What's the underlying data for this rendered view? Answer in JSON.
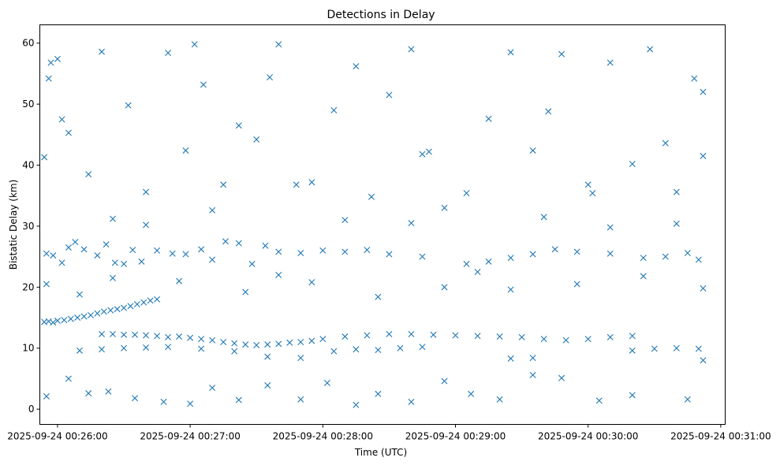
{
  "chart_data": {
    "type": "scatter",
    "title": "Detections in Delay",
    "xlabel": "Time (UTC)",
    "ylabel": "Bistatic Delay (km)",
    "marker": "x",
    "color": "#1f77b4",
    "grid": false,
    "legend": "none",
    "xlim": [
      "2025-09-24 00:25:52",
      "2025-09-24 00:31:02"
    ],
    "ylim": [
      -2.5,
      63
    ],
    "x_ticks": [
      "2025-09-24 00:26:00",
      "2025-09-24 00:27:00",
      "2025-09-24 00:28:00",
      "2025-09-24 00:29:00",
      "2025-09-24 00:30:00",
      "2025-09-24 00:31:00"
    ],
    "y_ticks": [
      0,
      10,
      20,
      30,
      40,
      50,
      60
    ],
    "series": [
      {
        "points": [
          [
            "2025-09-24 00:25:54",
            14.3
          ],
          [
            "2025-09-24 00:25:56",
            14.4
          ],
          [
            "2025-09-24 00:25:58",
            14.2
          ],
          [
            "2025-09-24 00:26:00",
            14.5
          ],
          [
            "2025-09-24 00:26:03",
            14.6
          ],
          [
            "2025-09-24 00:26:06",
            14.8
          ],
          [
            "2025-09-24 00:26:09",
            15.0
          ],
          [
            "2025-09-24 00:26:12",
            15.2
          ],
          [
            "2025-09-24 00:26:15",
            15.4
          ],
          [
            "2025-09-24 00:26:18",
            15.7
          ],
          [
            "2025-09-24 00:26:21",
            16.0
          ],
          [
            "2025-09-24 00:26:24",
            16.2
          ],
          [
            "2025-09-24 00:26:27",
            16.4
          ],
          [
            "2025-09-24 00:26:30",
            16.6
          ],
          [
            "2025-09-24 00:26:33",
            16.9
          ],
          [
            "2025-09-24 00:26:36",
            17.2
          ],
          [
            "2025-09-24 00:26:39",
            17.5
          ],
          [
            "2025-09-24 00:26:42",
            17.8
          ],
          [
            "2025-09-24 00:26:45",
            18.0
          ],
          [
            "2025-09-24 00:26:20",
            12.3
          ],
          [
            "2025-09-24 00:26:25",
            12.3
          ],
          [
            "2025-09-24 00:26:30",
            12.2
          ],
          [
            "2025-09-24 00:26:35",
            12.2
          ],
          [
            "2025-09-24 00:26:40",
            12.1
          ],
          [
            "2025-09-24 00:26:45",
            12.0
          ],
          [
            "2025-09-24 00:26:50",
            11.8
          ],
          [
            "2025-09-24 00:26:55",
            11.9
          ],
          [
            "2025-09-24 00:27:00",
            11.7
          ],
          [
            "2025-09-24 00:27:05",
            11.5
          ],
          [
            "2025-09-24 00:27:10",
            11.3
          ],
          [
            "2025-09-24 00:27:15",
            11.0
          ],
          [
            "2025-09-24 00:27:20",
            10.8
          ],
          [
            "2025-09-24 00:27:25",
            10.6
          ],
          [
            "2025-09-24 00:27:30",
            10.5
          ],
          [
            "2025-09-24 00:27:35",
            10.6
          ],
          [
            "2025-09-24 00:27:40",
            10.7
          ],
          [
            "2025-09-24 00:27:45",
            10.9
          ],
          [
            "2025-09-24 00:27:50",
            11.0
          ],
          [
            "2025-09-24 00:27:55",
            11.2
          ],
          [
            "2025-09-24 00:28:00",
            11.5
          ],
          [
            "2025-09-24 00:28:10",
            11.9
          ],
          [
            "2025-09-24 00:28:20",
            12.1
          ],
          [
            "2025-09-24 00:28:30",
            12.3
          ],
          [
            "2025-09-24 00:28:40",
            12.3
          ],
          [
            "2025-09-24 00:28:50",
            12.2
          ],
          [
            "2025-09-24 00:29:00",
            12.1
          ],
          [
            "2025-09-24 00:29:10",
            12.0
          ],
          [
            "2025-09-24 00:29:20",
            11.9
          ],
          [
            "2025-09-24 00:29:30",
            11.8
          ],
          [
            "2025-09-24 00:29:40",
            11.5
          ],
          [
            "2025-09-24 00:29:50",
            11.3
          ],
          [
            "2025-09-24 00:30:00",
            11.5
          ],
          [
            "2025-09-24 00:30:10",
            11.8
          ],
          [
            "2025-09-24 00:30:20",
            12.0
          ],
          [
            "2025-09-24 00:26:10",
            9.6
          ],
          [
            "2025-09-24 00:26:20",
            9.8
          ],
          [
            "2025-09-24 00:26:30",
            10.0
          ],
          [
            "2025-09-24 00:26:40",
            10.1
          ],
          [
            "2025-09-24 00:26:50",
            10.2
          ],
          [
            "2025-09-24 00:27:05",
            9.9
          ],
          [
            "2025-09-24 00:27:20",
            9.5
          ],
          [
            "2025-09-24 00:27:35",
            8.6
          ],
          [
            "2025-09-24 00:27:50",
            8.4
          ],
          [
            "2025-09-24 00:28:05",
            9.5
          ],
          [
            "2025-09-24 00:28:15",
            9.8
          ],
          [
            "2025-09-24 00:28:25",
            9.7
          ],
          [
            "2025-09-24 00:28:35",
            10.0
          ],
          [
            "2025-09-24 00:28:45",
            10.2
          ],
          [
            "2025-09-24 00:29:25",
            8.3
          ],
          [
            "2025-09-24 00:29:35",
            8.4
          ],
          [
            "2025-09-24 00:30:20",
            9.6
          ],
          [
            "2025-09-24 00:30:30",
            9.9
          ],
          [
            "2025-09-24 00:30:40",
            10.0
          ],
          [
            "2025-09-24 00:30:50",
            9.9
          ],
          [
            "2025-09-24 00:25:55",
            25.5
          ],
          [
            "2025-09-24 00:25:58",
            25.2
          ],
          [
            "2025-09-24 00:26:02",
            24.0
          ],
          [
            "2025-09-24 00:26:05",
            26.5
          ],
          [
            "2025-09-24 00:26:08",
            27.4
          ],
          [
            "2025-09-24 00:26:12",
            26.2
          ],
          [
            "2025-09-24 00:26:18",
            25.2
          ],
          [
            "2025-09-24 00:26:22",
            27.0
          ],
          [
            "2025-09-24 00:26:26",
            24.0
          ],
          [
            "2025-09-24 00:26:30",
            23.8
          ],
          [
            "2025-09-24 00:26:34",
            26.1
          ],
          [
            "2025-09-24 00:26:38",
            24.2
          ],
          [
            "2025-09-24 00:26:45",
            26.0
          ],
          [
            "2025-09-24 00:26:52",
            25.5
          ],
          [
            "2025-09-24 00:26:58",
            25.4
          ],
          [
            "2025-09-24 00:27:05",
            26.2
          ],
          [
            "2025-09-24 00:27:10",
            24.5
          ],
          [
            "2025-09-24 00:27:16",
            27.5
          ],
          [
            "2025-09-24 00:27:22",
            27.2
          ],
          [
            "2025-09-24 00:27:28",
            23.8
          ],
          [
            "2025-09-24 00:27:34",
            26.8
          ],
          [
            "2025-09-24 00:27:40",
            25.8
          ],
          [
            "2025-09-24 00:27:50",
            25.6
          ],
          [
            "2025-09-24 00:28:00",
            26.0
          ],
          [
            "2025-09-24 00:28:10",
            25.8
          ],
          [
            "2025-09-24 00:28:20",
            26.1
          ],
          [
            "2025-09-24 00:28:30",
            25.4
          ],
          [
            "2025-09-24 00:28:45",
            25.0
          ],
          [
            "2025-09-24 00:29:05",
            23.8
          ],
          [
            "2025-09-24 00:29:15",
            24.2
          ],
          [
            "2025-09-24 00:29:25",
            24.8
          ],
          [
            "2025-09-24 00:29:35",
            25.4
          ],
          [
            "2025-09-24 00:29:45",
            26.2
          ],
          [
            "2025-09-24 00:29:55",
            25.8
          ],
          [
            "2025-09-24 00:30:10",
            25.5
          ],
          [
            "2025-09-24 00:30:25",
            24.8
          ],
          [
            "2025-09-24 00:30:35",
            25.0
          ],
          [
            "2025-09-24 00:30:45",
            25.6
          ],
          [
            "2025-09-24 00:30:50",
            24.5
          ],
          [
            "2025-09-24 00:25:54",
            41.3
          ],
          [
            "2025-09-24 00:25:56",
            54.2
          ],
          [
            "2025-09-24 00:25:57",
            56.8
          ],
          [
            "2025-09-24 00:26:00",
            57.4
          ],
          [
            "2025-09-24 00:26:02",
            47.5
          ],
          [
            "2025-09-24 00:26:05",
            45.3
          ],
          [
            "2025-09-24 00:26:14",
            38.5
          ],
          [
            "2025-09-24 00:26:20",
            58.6
          ],
          [
            "2025-09-24 00:26:25",
            31.2
          ],
          [
            "2025-09-24 00:26:32",
            49.8
          ],
          [
            "2025-09-24 00:26:40",
            35.6
          ],
          [
            "2025-09-24 00:26:50",
            58.4
          ],
          [
            "2025-09-24 00:26:58",
            42.4
          ],
          [
            "2025-09-24 00:27:02",
            59.8
          ],
          [
            "2025-09-24 00:27:06",
            53.2
          ],
          [
            "2025-09-24 00:27:15",
            36.8
          ],
          [
            "2025-09-24 00:27:22",
            46.5
          ],
          [
            "2025-09-24 00:27:30",
            44.2
          ],
          [
            "2025-09-24 00:27:36",
            54.4
          ],
          [
            "2025-09-24 00:27:40",
            59.8
          ],
          [
            "2025-09-24 00:27:48",
            36.8
          ],
          [
            "2025-09-24 00:27:55",
            37.2
          ],
          [
            "2025-09-24 00:28:05",
            49.0
          ],
          [
            "2025-09-24 00:28:15",
            56.2
          ],
          [
            "2025-09-24 00:28:22",
            34.8
          ],
          [
            "2025-09-24 00:28:30",
            51.5
          ],
          [
            "2025-09-24 00:28:40",
            59.0
          ],
          [
            "2025-09-24 00:28:45",
            41.8
          ],
          [
            "2025-09-24 00:28:48",
            42.2
          ],
          [
            "2025-09-24 00:28:55",
            33.0
          ],
          [
            "2025-09-24 00:29:05",
            35.4
          ],
          [
            "2025-09-24 00:29:15",
            47.6
          ],
          [
            "2025-09-24 00:29:25",
            58.5
          ],
          [
            "2025-09-24 00:29:35",
            42.4
          ],
          [
            "2025-09-24 00:29:42",
            48.8
          ],
          [
            "2025-09-24 00:29:48",
            58.2
          ],
          [
            "2025-09-24 00:30:00",
            36.8
          ],
          [
            "2025-09-24 00:30:02",
            35.4
          ],
          [
            "2025-09-24 00:30:10",
            56.8
          ],
          [
            "2025-09-24 00:30:20",
            40.2
          ],
          [
            "2025-09-24 00:30:28",
            59.0
          ],
          [
            "2025-09-24 00:30:35",
            43.6
          ],
          [
            "2025-09-24 00:30:40",
            35.6
          ],
          [
            "2025-09-24 00:30:48",
            54.2
          ],
          [
            "2025-09-24 00:30:52",
            41.5
          ],
          [
            "2025-09-24 00:30:52",
            52.0
          ],
          [
            "2025-09-24 00:25:55",
            2.1
          ],
          [
            "2025-09-24 00:26:05",
            5.0
          ],
          [
            "2025-09-24 00:26:14",
            2.6
          ],
          [
            "2025-09-24 00:26:23",
            2.9
          ],
          [
            "2025-09-24 00:26:35",
            1.8
          ],
          [
            "2025-09-24 00:26:48",
            1.2
          ],
          [
            "2025-09-24 00:27:00",
            0.9
          ],
          [
            "2025-09-24 00:27:10",
            3.5
          ],
          [
            "2025-09-24 00:27:22",
            1.5
          ],
          [
            "2025-09-24 00:27:35",
            3.9
          ],
          [
            "2025-09-24 00:27:50",
            1.6
          ],
          [
            "2025-09-24 00:28:02",
            4.3
          ],
          [
            "2025-09-24 00:28:15",
            0.7
          ],
          [
            "2025-09-24 00:28:25",
            2.5
          ],
          [
            "2025-09-24 00:28:40",
            1.2
          ],
          [
            "2025-09-24 00:28:55",
            4.6
          ],
          [
            "2025-09-24 00:29:07",
            2.5
          ],
          [
            "2025-09-24 00:29:20",
            1.6
          ],
          [
            "2025-09-24 00:29:35",
            5.6
          ],
          [
            "2025-09-24 00:29:48",
            5.1
          ],
          [
            "2025-09-24 00:30:05",
            1.4
          ],
          [
            "2025-09-24 00:30:20",
            2.3
          ],
          [
            "2025-09-24 00:30:45",
            1.6
          ],
          [
            "2025-09-24 00:30:52",
            8.0
          ],
          [
            "2025-09-24 00:25:55",
            20.5
          ],
          [
            "2025-09-24 00:26:10",
            18.8
          ],
          [
            "2025-09-24 00:26:25",
            21.5
          ],
          [
            "2025-09-24 00:26:40",
            30.2
          ],
          [
            "2025-09-24 00:26:55",
            21.0
          ],
          [
            "2025-09-24 00:27:10",
            32.6
          ],
          [
            "2025-09-24 00:27:25",
            19.2
          ],
          [
            "2025-09-24 00:27:40",
            22.0
          ],
          [
            "2025-09-24 00:27:55",
            20.8
          ],
          [
            "2025-09-24 00:28:10",
            31.0
          ],
          [
            "2025-09-24 00:28:25",
            18.4
          ],
          [
            "2025-09-24 00:28:40",
            30.5
          ],
          [
            "2025-09-24 00:28:55",
            20.0
          ],
          [
            "2025-09-24 00:29:10",
            22.5
          ],
          [
            "2025-09-24 00:29:25",
            19.6
          ],
          [
            "2025-09-24 00:29:40",
            31.5
          ],
          [
            "2025-09-24 00:29:55",
            20.5
          ],
          [
            "2025-09-24 00:30:10",
            29.8
          ],
          [
            "2025-09-24 00:30:25",
            21.8
          ],
          [
            "2025-09-24 00:30:40",
            30.4
          ],
          [
            "2025-09-24 00:30:52",
            19.8
          ]
        ]
      }
    ]
  }
}
